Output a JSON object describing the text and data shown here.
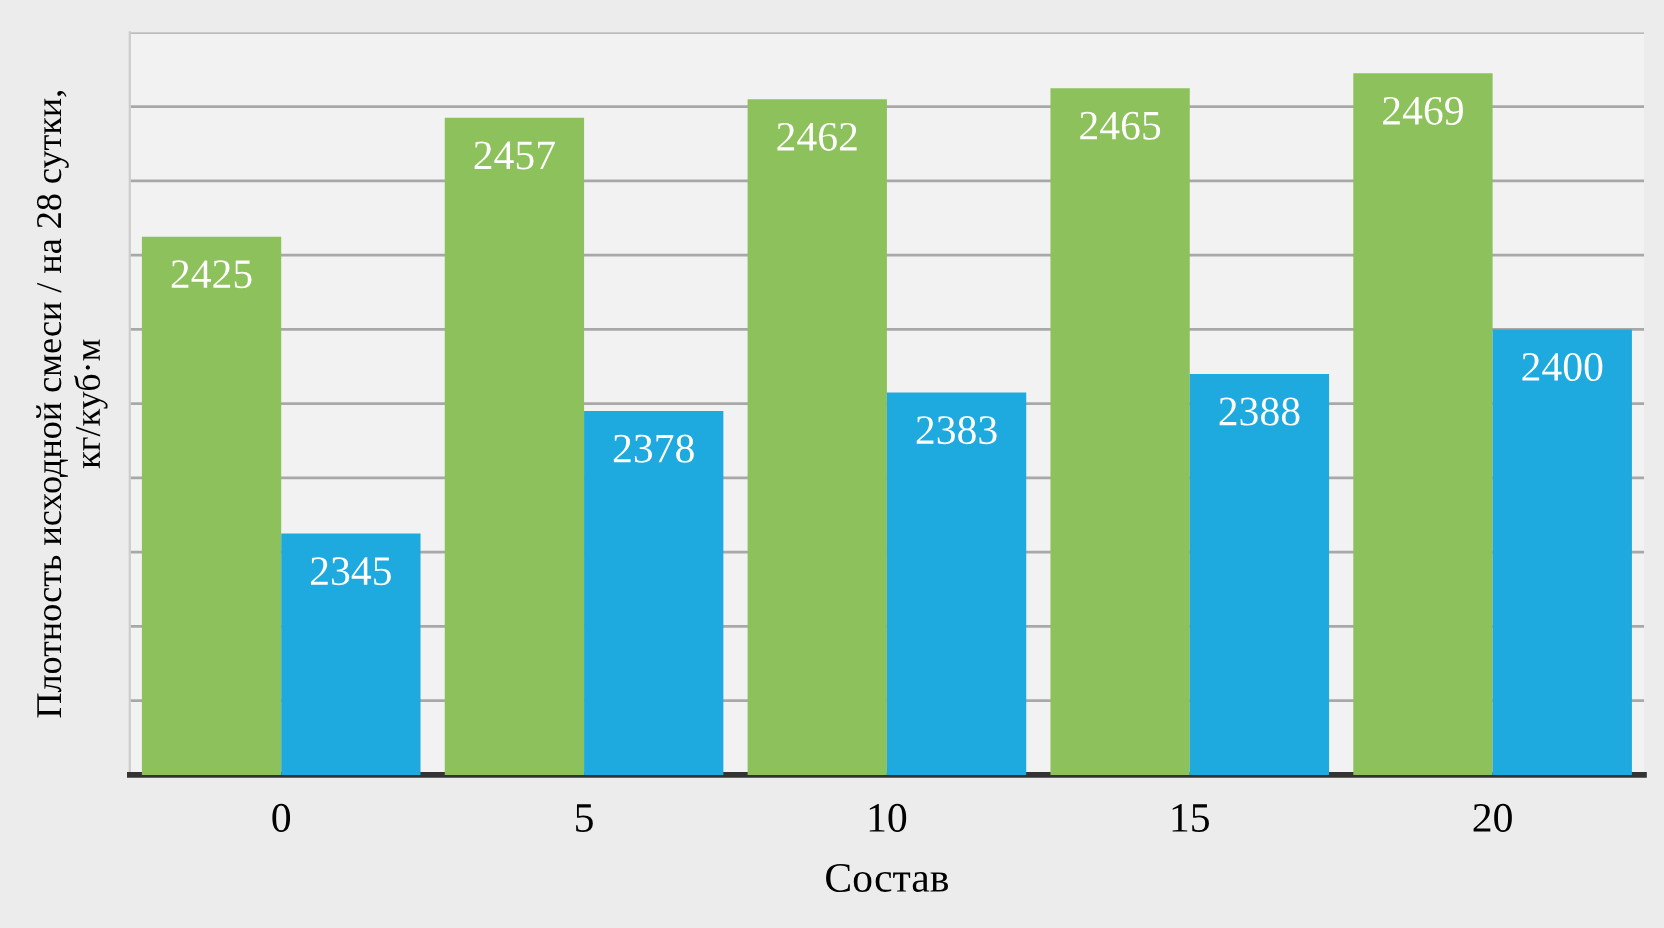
{
  "chart_data": {
    "type": "bar",
    "xlabel": "Состав",
    "ylabel": "Плотность исходной смеси / на 28 сутки,\nкг/куб·м",
    "categories": [
      "0",
      "5",
      "10",
      "15",
      "20"
    ],
    "series": [
      {
        "color": "#8dc15b",
        "values": [
          2425,
          2457,
          2462,
          2465,
          2469
        ]
      },
      {
        "color": "#1eaadf",
        "values": [
          2345,
          2378,
          2383,
          2388,
          2400
        ]
      }
    ],
    "ylim": [
      2280,
      2480
    ],
    "yticks": [
      {
        "value": 2300,
        "label": null
      },
      {
        "value": 2320,
        "label": null
      },
      {
        "value": 2340,
        "label": null
      },
      {
        "value": 2360,
        "label": null
      },
      {
        "value": 2380,
        "label": null
      },
      {
        "value": 2400,
        "label": null
      },
      {
        "value": 2420,
        "label": null
      },
      {
        "value": 2440,
        "label": null
      },
      {
        "value": 2460,
        "label": null
      },
      {
        "value": 2480,
        "label": null
      }
    ],
    "tick_labels": "x",
    "grid": "y",
    "data_labels": true
  }
}
